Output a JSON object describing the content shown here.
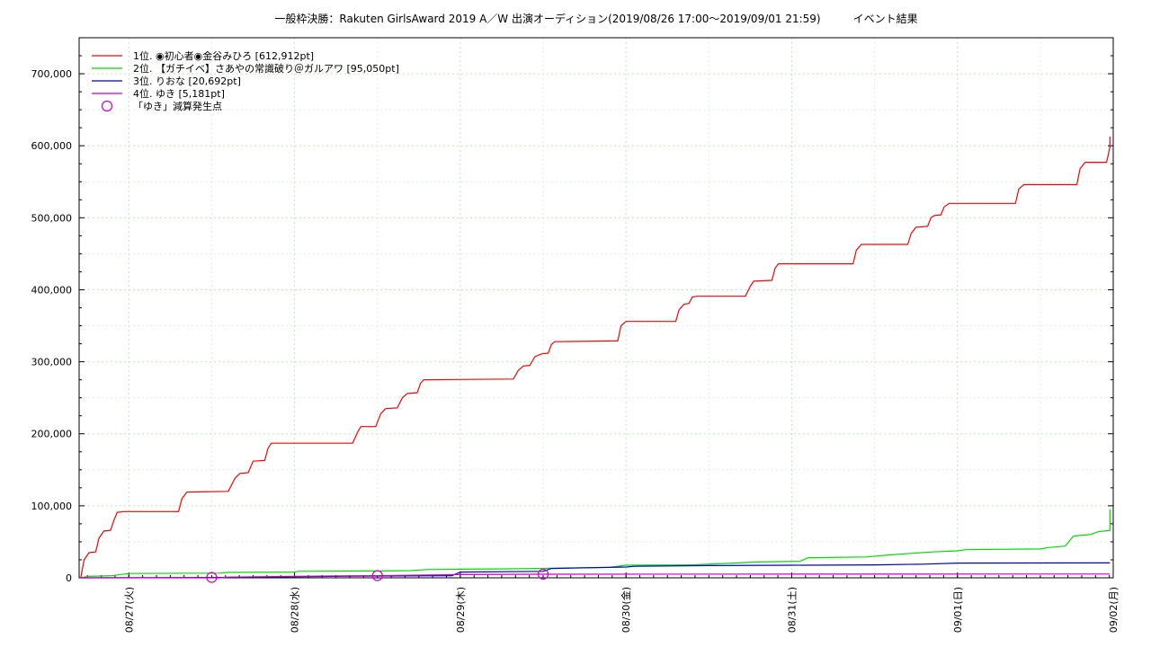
{
  "chart_data": {
    "type": "line",
    "title": "一般枠決勝：Rakuten GirlsAward 2019 A／W 出演オーディション(2019/08/26 17:00～2019/09/01 21:59)　　　イベント結果",
    "ylim": [
      0,
      750000
    ],
    "y_ticks": [
      {
        "value": 0,
        "label": "0"
      },
      {
        "value": 100000,
        "label": "100,000"
      },
      {
        "value": 200000,
        "label": "200,000"
      },
      {
        "value": 300000,
        "label": "300,000"
      },
      {
        "value": 400000,
        "label": "400,000"
      },
      {
        "value": 500000,
        "label": "500,000"
      },
      {
        "value": 600000,
        "label": "600,000"
      },
      {
        "value": 700000,
        "label": "700,000"
      }
    ],
    "xlim": [
      -0.3,
      5.94
    ],
    "x_ticks": [
      {
        "value": 0,
        "label": "08/27(火)"
      },
      {
        "value": 1,
        "label": "08/28(水)"
      },
      {
        "value": 2,
        "label": "08/29(木)"
      },
      {
        "value": 3,
        "label": "08/30(金)"
      },
      {
        "value": 4,
        "label": "08/31(土)"
      },
      {
        "value": 5,
        "label": "09/01(日)"
      },
      {
        "value": 6,
        "label": "09/02(月)"
      }
    ],
    "grid": true,
    "legend_position": "top-left",
    "series": [
      {
        "name": "1位. ◉初心者◉金谷みひろ [612,912pt]",
        "color": "#ff0000",
        "points": [
          [
            -0.29,
            0
          ],
          [
            -0.27,
            25000
          ],
          [
            -0.24,
            35000
          ],
          [
            -0.2,
            36000
          ],
          [
            -0.18,
            55000
          ],
          [
            -0.15,
            65000
          ],
          [
            -0.11,
            66000
          ],
          [
            -0.09,
            80000
          ],
          [
            -0.07,
            91000
          ],
          [
            -0.03,
            92000
          ],
          [
            0.3,
            92000
          ],
          [
            0.32,
            110000
          ],
          [
            0.35,
            119000
          ],
          [
            0.6,
            120000
          ],
          [
            0.64,
            138000
          ],
          [
            0.67,
            145000
          ],
          [
            0.72,
            146000
          ],
          [
            0.75,
            162000
          ],
          [
            0.82,
            163000
          ],
          [
            0.84,
            180000
          ],
          [
            0.86,
            187000
          ],
          [
            1.35,
            187000
          ],
          [
            1.38,
            202000
          ],
          [
            1.4,
            210000
          ],
          [
            1.49,
            210000
          ],
          [
            1.52,
            228000
          ],
          [
            1.55,
            235000
          ],
          [
            1.62,
            236000
          ],
          [
            1.65,
            250000
          ],
          [
            1.68,
            256000
          ],
          [
            1.74,
            257000
          ],
          [
            1.76,
            270000
          ],
          [
            1.78,
            275000
          ],
          [
            2.32,
            276000
          ],
          [
            2.35,
            288000
          ],
          [
            2.38,
            294000
          ],
          [
            2.42,
            295000
          ],
          [
            2.45,
            307000
          ],
          [
            2.49,
            311000
          ],
          [
            2.53,
            312000
          ],
          [
            2.55,
            324000
          ],
          [
            2.57,
            328000
          ],
          [
            2.95,
            329000
          ],
          [
            2.97,
            350000
          ],
          [
            3.0,
            356000
          ],
          [
            3.3,
            356000
          ],
          [
            3.32,
            372000
          ],
          [
            3.35,
            380000
          ],
          [
            3.38,
            381000
          ],
          [
            3.4,
            390000
          ],
          [
            3.43,
            391000
          ],
          [
            3.72,
            391000
          ],
          [
            3.75,
            405000
          ],
          [
            3.77,
            412000
          ],
          [
            3.88,
            413000
          ],
          [
            3.9,
            430000
          ],
          [
            3.92,
            436000
          ],
          [
            4.37,
            436000
          ],
          [
            4.39,
            455000
          ],
          [
            4.42,
            463000
          ],
          [
            4.7,
            463000
          ],
          [
            4.72,
            478000
          ],
          [
            4.75,
            487000
          ],
          [
            4.82,
            488000
          ],
          [
            4.84,
            500000
          ],
          [
            4.86,
            503000
          ],
          [
            4.9,
            504000
          ],
          [
            4.92,
            515000
          ],
          [
            4.95,
            520000
          ],
          [
            5.35,
            520000
          ],
          [
            5.37,
            540000
          ],
          [
            5.4,
            546000
          ],
          [
            5.72,
            546000
          ],
          [
            5.74,
            568000
          ],
          [
            5.77,
            577000
          ],
          [
            5.9,
            577000
          ],
          [
            5.92,
            598000
          ],
          [
            5.95,
            611000
          ],
          [
            6.0,
            612912
          ]
        ]
      },
      {
        "name": "2位. 【ガチイベ】さあやの常識破り＠ガルアワ [95,050pt]",
        "color": "#00dd00",
        "points": [
          [
            -0.29,
            0
          ],
          [
            -0.25,
            2000
          ],
          [
            -0.1,
            3000
          ],
          [
            0.0,
            6000
          ],
          [
            0.55,
            6500
          ],
          [
            0.6,
            7500
          ],
          [
            1.0,
            8000
          ],
          [
            1.02,
            9000
          ],
          [
            1.5,
            9500
          ],
          [
            1.7,
            10000
          ],
          [
            1.8,
            11500
          ],
          [
            2.0,
            12000
          ],
          [
            2.3,
            12500
          ],
          [
            2.6,
            13500
          ],
          [
            2.9,
            14500
          ],
          [
            3.0,
            17500
          ],
          [
            3.4,
            18000
          ],
          [
            3.6,
            20000
          ],
          [
            3.8,
            22000
          ],
          [
            4.05,
            23000
          ],
          [
            4.1,
            28000
          ],
          [
            4.45,
            29000
          ],
          [
            4.6,
            32000
          ],
          [
            4.72,
            34000
          ],
          [
            4.85,
            36000
          ],
          [
            5.0,
            37500
          ],
          [
            5.05,
            39000
          ],
          [
            5.5,
            40000
          ],
          [
            5.55,
            42000
          ],
          [
            5.65,
            44000
          ],
          [
            5.7,
            58000
          ],
          [
            5.8,
            60000
          ],
          [
            5.85,
            64000
          ],
          [
            5.93,
            66000
          ],
          [
            5.95,
            93000
          ],
          [
            6.0,
            95050
          ]
        ]
      },
      {
        "name": "3位. りおな [20,692pt]",
        "color": "#0000cc",
        "points": [
          [
            -0.29,
            0
          ],
          [
            0.1,
            200
          ],
          [
            0.5,
            500
          ],
          [
            1.0,
            1500
          ],
          [
            1.5,
            2500
          ],
          [
            1.95,
            3000
          ],
          [
            2.0,
            8000
          ],
          [
            2.5,
            9000
          ],
          [
            2.55,
            13000
          ],
          [
            3.0,
            15000
          ],
          [
            3.05,
            16000
          ],
          [
            3.5,
            17000
          ],
          [
            4.0,
            17500
          ],
          [
            4.5,
            18000
          ],
          [
            4.8,
            19000
          ],
          [
            5.0,
            20500
          ],
          [
            6.0,
            20692
          ]
        ]
      },
      {
        "name": "4位. ゆき [5,181pt]",
        "color": "#cc00cc",
        "points": [
          [
            -0.29,
            0
          ],
          [
            0.55,
            0
          ],
          [
            0.6,
            1000
          ],
          [
            1.2,
            2500
          ],
          [
            1.5,
            3000
          ],
          [
            2.0,
            4500
          ],
          [
            2.5,
            5000
          ],
          [
            6.0,
            5181
          ]
        ]
      }
    ],
    "markers": {
      "name": "「ゆき」減算発生点",
      "color": "#cc00cc",
      "points": [
        [
          0.5,
          500
        ],
        [
          1.5,
          3000
        ],
        [
          2.5,
          5000
        ]
      ]
    }
  }
}
